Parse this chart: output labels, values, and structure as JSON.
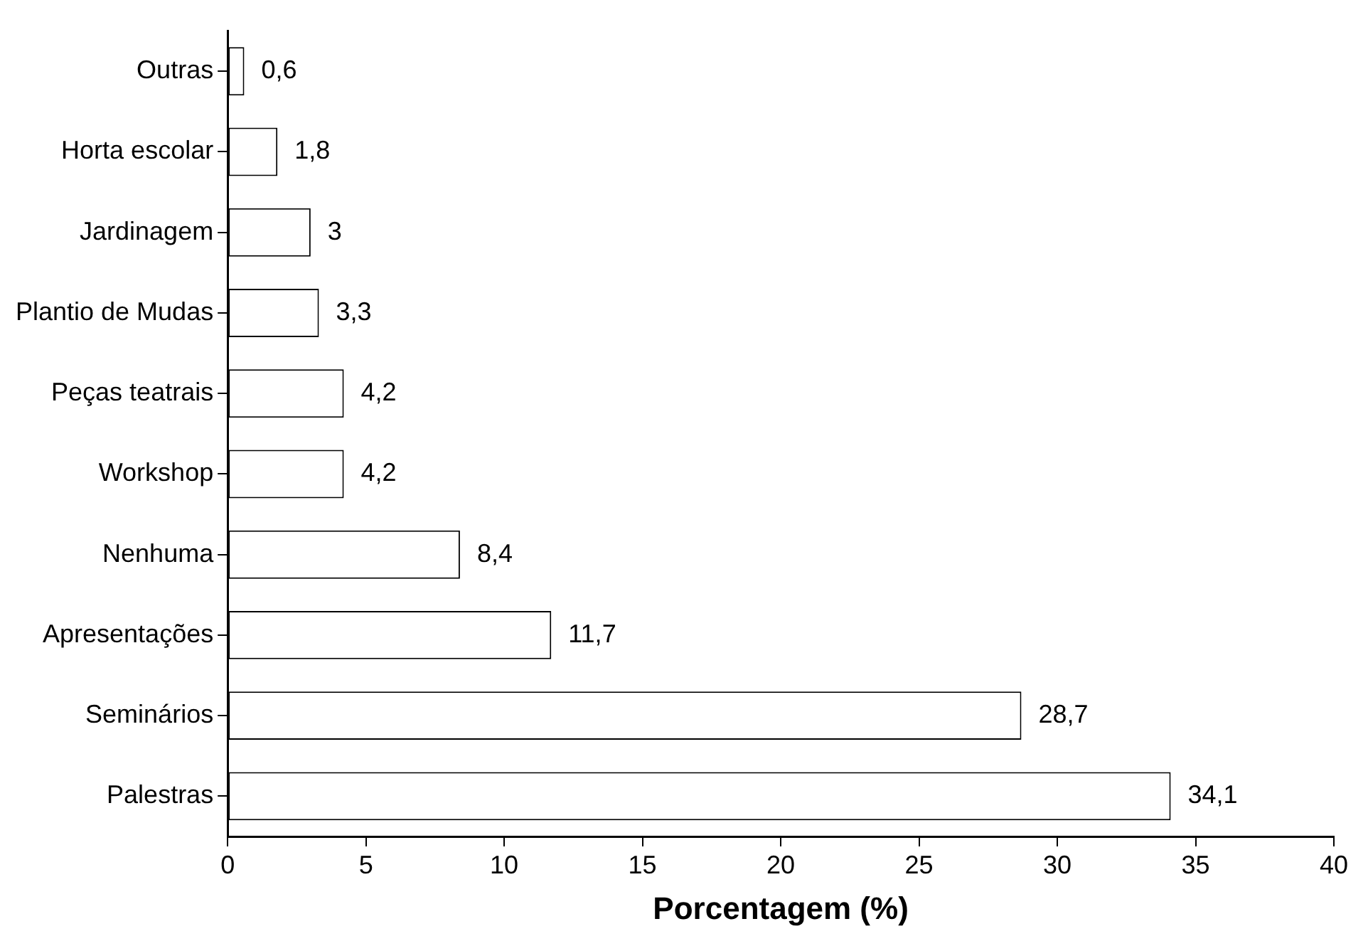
{
  "chart_data": {
    "type": "bar",
    "orientation": "horizontal",
    "xlabel": "Porcentagem (%)",
    "categories": [
      "Outras",
      "Horta escolar",
      "Jardinagem",
      "Plantio de Mudas",
      "Peças teatrais",
      "Workshop",
      "Nenhuma",
      "Apresentações",
      "Seminários",
      "Palestras"
    ],
    "values": [
      0.6,
      1.8,
      3,
      3.3,
      4.2,
      4.2,
      8.4,
      11.7,
      28.7,
      34.1
    ],
    "value_labels": [
      "0,6",
      "1,8",
      "3",
      "3,3",
      "4,2",
      "4,2",
      "8,4",
      "11,7",
      "28,7",
      "34,1"
    ],
    "color": "#ffffff",
    "xlim": [
      0,
      40
    ],
    "xticks": [
      0,
      5,
      10,
      15,
      20,
      25,
      30,
      35,
      40
    ],
    "grid": false,
    "legend": false
  }
}
